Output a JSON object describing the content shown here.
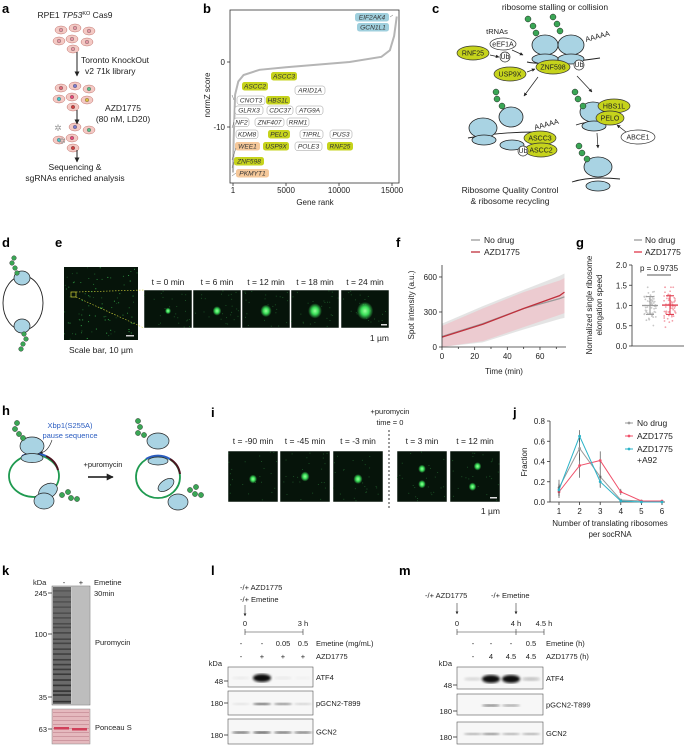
{
  "panel_labels": {
    "a": "a",
    "b": "b",
    "c": "c",
    "d": "d",
    "e": "e",
    "f": "f",
    "g": "g",
    "h": "h",
    "i": "i",
    "j": "j",
    "k": "k",
    "l": "l",
    "m": "m"
  },
  "colors": {
    "ribosome": "#a9d3e3",
    "nascent_chain": "#3aa655",
    "hit_green": "#c6d31c",
    "hit_orange": "#f5c89a",
    "hit_blue": "#9fcfdd",
    "no_drug": "#9a9a9a",
    "azd1775": "#e0384a",
    "azd1775_a92": "#2bb3c8",
    "pause_sequence": "#2a5cc0",
    "micrograph_bg": "#06140a",
    "spot": "#3be05a",
    "ponceau": "#e5b9be"
  },
  "a": {
    "title_prefix": "RPE1 ",
    "title_gene": "TP53",
    "title_sup": "KO",
    "title_suffix": " Cas9",
    "step1": [
      "Toronto KnockOut",
      "v2 71k library"
    ],
    "step2": [
      "AZD1775",
      "(80 nM, LD20)"
    ],
    "step3": [
      "Sequencing &",
      "sgRNAs enriched analysis"
    ]
  },
  "c": {
    "title": "ribosome stalling or collision",
    "bottom": [
      "Ribosome Quality Control",
      "& ribosome recycling"
    ],
    "trnas": "tRNAs",
    "eef1a": "eEF1A",
    "ub": "Ub",
    "polya": "AAAAA",
    "rnf25": "RNF25",
    "usp9x": "USP9X",
    "znf598": "ZNF598",
    "ascc3": "ASCC3",
    "ascc2": "ASCC2",
    "hbs1l": "HBS1L",
    "pelo": "PELO",
    "abce1": "ABCE1"
  },
  "e": {
    "timepoints": [
      "t = 0 min",
      "t = 6 min",
      "t = 12 min",
      "t = 18 min",
      "t = 24 min"
    ],
    "scale_main": "Scale bar, 10 µm",
    "scale_zoom": "1 µm"
  },
  "h": {
    "pause_label": [
      "Xbp1(S255A)",
      "pause sequence"
    ],
    "treatment": "+puromycin"
  },
  "i": {
    "treatment": [
      "+puromycin",
      "time = 0"
    ],
    "timepoints": [
      "t = -90 min",
      "t = -45 min",
      "t = -3 min",
      "t = 3 min",
      "t = 12 min"
    ],
    "scale": "1 µm"
  },
  "k": {
    "kda": "kDa",
    "lanes": [
      "-",
      "+"
    ],
    "treatment": [
      "Emetine",
      "30min"
    ],
    "markers": [
      "245",
      "100",
      "35",
      "63"
    ],
    "blots": [
      "Puromycin",
      "Ponceau S"
    ]
  },
  "l": {
    "timeline": {
      "drug1": "-/+ AZD1775",
      "drug2": "-/+ Emetine",
      "ticks": [
        "0",
        "3 h"
      ]
    },
    "rows": [
      {
        "label": "Emetine (mg/mL)",
        "values": [
          "-",
          "-",
          "0.05",
          "0.5"
        ]
      },
      {
        "label": "AZD1775",
        "values": [
          "-",
          "+",
          "+",
          "+"
        ]
      }
    ],
    "kda": "kDa",
    "blots": [
      {
        "name": "ATF4",
        "marker": "48",
        "intensities": [
          0.04,
          1.0,
          0.05,
          0.02
        ]
      },
      {
        "name": "pGCN2-T899",
        "marker": "180",
        "intensities": [
          0.08,
          0.6,
          0.45,
          0.15
        ]
      },
      {
        "name": "GCN2",
        "marker": "180",
        "intensities": [
          0.6,
          0.7,
          0.6,
          0.55
        ]
      }
    ]
  },
  "m": {
    "timeline": {
      "drug1": "-/+ AZD1775",
      "drug2": "-/+ Emetine",
      "ticks": [
        "0",
        "4 h",
        "4.5 h"
      ]
    },
    "rows": [
      {
        "label": "Emetine (h)",
        "values": [
          "-",
          "-",
          "-",
          "0.5"
        ]
      },
      {
        "label": "AZD1775 (h)",
        "values": [
          "-",
          "4",
          "4.5",
          "4.5"
        ]
      }
    ],
    "kda": "kDa",
    "blots": [
      {
        "name": "ATF4",
        "marker": "48",
        "intensities": [
          0.12,
          1.0,
          1.0,
          0.2
        ]
      },
      {
        "name": "pGCN2-T899",
        "marker": "180",
        "intensities": [
          0.0,
          0.5,
          0.35,
          0.0
        ]
      },
      {
        "name": "GCN2",
        "marker": "180",
        "intensities": [
          0.3,
          0.45,
          0.3,
          0.3
        ]
      }
    ]
  },
  "chart_data": [
    {
      "panel": "b",
      "type": "line",
      "xlabel": "Gene rank",
      "ylabel": "normZ score",
      "xlim": [
        1,
        15500
      ],
      "ylim": [
        -18,
        8
      ],
      "x_ticks": [
        "1",
        "5000",
        "10000",
        "15000"
      ],
      "x_tick_values": [
        1,
        5000,
        10000,
        15000
      ],
      "y_ticks": [
        "0",
        "-10"
      ],
      "y_tick_values": [
        0,
        -10
      ],
      "x": [
        1,
        60,
        200,
        500,
        1000,
        2500,
        5000,
        8000,
        11000,
        14000,
        14800,
        15200,
        15450
      ],
      "y": [
        -17,
        -12,
        -5,
        -3,
        -2,
        -1.2,
        -0.8,
        -0.4,
        0,
        0.8,
        1.8,
        4,
        7
      ],
      "annotations": [
        {
          "label": "EIF2AK4",
          "group": "blue"
        },
        {
          "label": "GCN1L1",
          "group": "blue"
        },
        {
          "label": "ASCC3",
          "group": "green"
        },
        {
          "label": "ASCC2",
          "group": "green"
        },
        {
          "label": "ARID1A",
          "group": "plain"
        },
        {
          "label": "CNOT3",
          "group": "plain"
        },
        {
          "label": "HBS1L",
          "group": "green"
        },
        {
          "label": "GLRX3",
          "group": "plain"
        },
        {
          "label": "CDC37",
          "group": "plain"
        },
        {
          "label": "ATG9A",
          "group": "plain"
        },
        {
          "label": "NF2",
          "group": "plain"
        },
        {
          "label": "ZNF407",
          "group": "plain"
        },
        {
          "label": "RRM1",
          "group": "plain"
        },
        {
          "label": "KDM8",
          "group": "plain"
        },
        {
          "label": "PELO",
          "group": "green"
        },
        {
          "label": "TIPRL",
          "group": "plain"
        },
        {
          "label": "PUS3",
          "group": "plain"
        },
        {
          "label": "WEE1",
          "group": "orange"
        },
        {
          "label": "USP9X",
          "group": "green"
        },
        {
          "label": "POLE3",
          "group": "plain"
        },
        {
          "label": "RNF25",
          "group": "green"
        },
        {
          "label": "ZNF598",
          "group": "green"
        },
        {
          "label": "PKMYT1",
          "group": "orange"
        }
      ]
    },
    {
      "panel": "f",
      "type": "line",
      "xlabel": "Time (min)",
      "ylabel": "Spot intensity (a.u.)",
      "xlim": [
        0,
        75
      ],
      "ylim": [
        0,
        700
      ],
      "x_ticks": [
        "0",
        "20",
        "40",
        "60"
      ],
      "x_tick_values": [
        0,
        20,
        40,
        60
      ],
      "y_ticks": [
        "0",
        "300",
        "600"
      ],
      "y_tick_values": [
        0,
        300,
        600
      ],
      "legend": "top",
      "series": [
        {
          "name": "No drug",
          "color": "#9a9a9a",
          "x": [
            0,
            25,
            50,
            72,
            75
          ],
          "mean": [
            90,
            200,
            330,
            415,
            430
          ],
          "lower": [
            0,
            40,
            150,
            240,
            250
          ],
          "upper": [
            200,
            350,
            490,
            610,
            630
          ]
        },
        {
          "name": "AZD1775",
          "color": "#c0303c",
          "x": [
            0,
            25,
            50,
            72,
            75
          ],
          "mean": [
            85,
            195,
            330,
            440,
            470
          ],
          "lower": [
            0,
            50,
            170,
            275,
            290
          ],
          "upper": [
            180,
            330,
            470,
            570,
            590
          ]
        }
      ]
    },
    {
      "panel": "g",
      "type": "scatter",
      "ylabel": "Normalized single ribosome elongation speed",
      "ylim": [
        0,
        2
      ],
      "y_ticks": [
        "0.0",
        "0.5",
        "1.0",
        "1.5",
        "2.0"
      ],
      "y_tick_values": [
        0,
        0.5,
        1.0,
        1.5,
        2.0
      ],
      "legend": "top",
      "p_value": "p = 0.9735",
      "groups": [
        {
          "name": "No drug",
          "color": "#9a9a9a",
          "mean": 1.0,
          "sd": 0.22,
          "range": [
            0.45,
            1.55
          ]
        },
        {
          "name": "AZD1775",
          "color": "#e0384a",
          "mean": 1.01,
          "sd": 0.23,
          "range": [
            0.45,
            1.45
          ]
        }
      ]
    },
    {
      "panel": "j",
      "type": "line",
      "xlabel": "Number of translating ribosomes",
      "xlabel2": "per socRNA",
      "ylabel": "Fraction",
      "xlim": [
        1,
        6
      ],
      "ylim": [
        0,
        0.8
      ],
      "x_ticks": [
        "1",
        "2",
        "3",
        "4",
        "5",
        "6"
      ],
      "x_tick_values": [
        1,
        2,
        3,
        4,
        5,
        6
      ],
      "y_ticks": [
        "0.0",
        "0.2",
        "0.4",
        "0.6",
        "0.8"
      ],
      "y_tick_values": [
        0,
        0.2,
        0.4,
        0.6,
        0.8
      ],
      "legend": "top-right",
      "series": [
        {
          "name": "No drug",
          "color": "#9a9a9a",
          "values": [
            0.14,
            0.53,
            0.25,
            0.02,
            0.01,
            0.0
          ],
          "err": [
            0.08,
            0.12,
            0.1,
            0.01,
            0.01,
            0.0
          ]
        },
        {
          "name": "AZD1775",
          "color": "#f0506a",
          "values": [
            0.1,
            0.36,
            0.41,
            0.1,
            0.01,
            0.01
          ],
          "err": [
            0.06,
            0.12,
            0.09,
            0.03,
            0.01,
            0.0
          ]
        },
        {
          "name": "AZD1775",
          "name2": "+A92",
          "color": "#2bb3c8",
          "values": [
            0.12,
            0.65,
            0.2,
            0.01,
            0.0,
            0.0
          ],
          "err": [
            0.06,
            0.06,
            0.06,
            0.01,
            0.0,
            0.0
          ]
        }
      ]
    }
  ]
}
